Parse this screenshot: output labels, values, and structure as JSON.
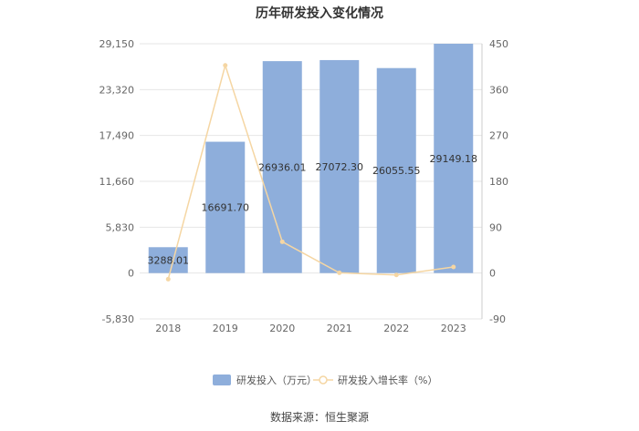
{
  "chart_data": {
    "type": "bar",
    "title": "历年研发投入变化情况",
    "categories": [
      "2018",
      "2019",
      "2020",
      "2021",
      "2022",
      "2023"
    ],
    "series": [
      {
        "name": "研发投入（万元）",
        "type": "bar",
        "axis": "left",
        "values": [
          3288.01,
          16691.7,
          26936.01,
          27072.3,
          26055.55,
          29149.18
        ],
        "labels": [
          "3288.01",
          "16691.70",
          "26936.01",
          "27072.30",
          "26055.55",
          "29149.18"
        ],
        "color": "#8eaedb"
      },
      {
        "name": "研发投入增长率（%）",
        "type": "line",
        "axis": "right",
        "values": [
          -12,
          407.6,
          61.4,
          0.5,
          -3.8,
          11.9
        ],
        "color": "#f5d6a3"
      }
    ],
    "y_left": {
      "ylim": [
        -5830,
        29150
      ],
      "ticks": [
        -5830,
        0,
        5830,
        11660,
        17490,
        23320,
        29150
      ],
      "tick_labels": [
        "-5,830",
        "0",
        "5,830",
        "11,660",
        "17,490",
        "23,320",
        "29,150"
      ]
    },
    "y_right": {
      "ylim": [
        -90,
        450
      ],
      "ticks": [
        -90,
        0,
        90,
        180,
        270,
        360,
        450
      ],
      "tick_labels": [
        "-90",
        "0",
        "90",
        "180",
        "270",
        "360",
        "450"
      ]
    },
    "grid": true,
    "legend_position": "bottom"
  },
  "source": "数据来源：恒生聚源"
}
